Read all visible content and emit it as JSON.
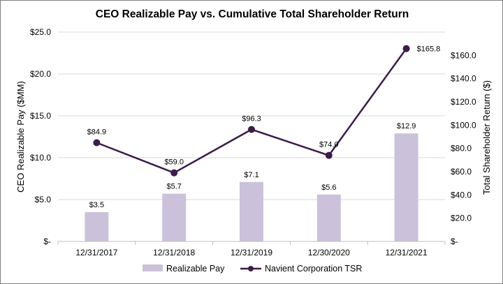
{
  "chart_data": {
    "type": "bar",
    "title": "CEO Realizable Pay vs. Cumulative Total Shareholder Return",
    "categories": [
      "12/31/2017",
      "12/31/2018",
      "12/31/2019",
      "12/30/2020",
      "12/31/2021"
    ],
    "y_left": {
      "label": "CEO Realizable Pay ($MM)",
      "range": [
        0,
        25
      ],
      "ticks": [
        0,
        5,
        10,
        15,
        20,
        25
      ],
      "tick_labels": [
        "$-",
        "$5.0",
        "$10.0",
        "$15.0",
        "$20.0",
        "$25.0"
      ]
    },
    "y_right": {
      "label": "Total Shareholder Return ($)",
      "range": [
        0,
        180
      ],
      "ticks": [
        0,
        20,
        40,
        60,
        80,
        100,
        120,
        140,
        160
      ],
      "tick_labels": [
        "$-",
        "$20.0",
        "$40.0",
        "$60.0",
        "$80.0",
        "$100.0",
        "$120.0",
        "$140.0",
        "$160.0"
      ]
    },
    "series": [
      {
        "name": "Realizable Pay",
        "type": "bar",
        "axis": "left",
        "color": "#ccc1da",
        "values": [
          3.5,
          5.7,
          7.1,
          5.6,
          12.9
        ],
        "labels": [
          "$3.5",
          "$5.7",
          "$7.1",
          "$5.6",
          "$12.9"
        ]
      },
      {
        "name": "Navient Corporation TSR",
        "type": "line",
        "axis": "right",
        "color": "#3b1c4a",
        "values": [
          84.9,
          59.0,
          96.3,
          74.0,
          165.8
        ],
        "labels": [
          "$84.9",
          "$59.0",
          "$96.3",
          "$74.0",
          "$165.8"
        ]
      }
    ],
    "grid": true,
    "legend_position": "bottom"
  }
}
